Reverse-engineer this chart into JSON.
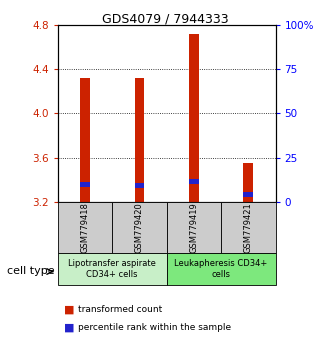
{
  "title": "GDS4079 / 7944333",
  "samples": [
    "GSM779418",
    "GSM779420",
    "GSM779419",
    "GSM779421"
  ],
  "red_values": [
    4.32,
    4.32,
    4.72,
    3.55
  ],
  "blue_values": [
    3.36,
    3.35,
    3.38,
    3.27
  ],
  "bar_bottom": 3.2,
  "ylim_left": [
    3.2,
    4.8
  ],
  "ylim_right": [
    0,
    100
  ],
  "yticks_left": [
    3.2,
    3.6,
    4.0,
    4.4,
    4.8
  ],
  "yticks_right": [
    0,
    25,
    50,
    75,
    100
  ],
  "ytick_labels_right": [
    "0",
    "25",
    "50",
    "75",
    "100%"
  ],
  "grid_lines": [
    3.6,
    4.0,
    4.4
  ],
  "groups": [
    {
      "label": "Lipotransfer aspirate\nCD34+ cells",
      "samples": [
        0,
        1
      ],
      "color": "#c8efc8"
    },
    {
      "label": "Leukapheresis CD34+\ncells",
      "samples": [
        2,
        3
      ],
      "color": "#7de87d"
    }
  ],
  "cell_type_label": "cell type",
  "legend_red": "transformed count",
  "legend_blue": "percentile rank within the sample",
  "red_color": "#cc2200",
  "blue_color": "#2222cc",
  "bar_width": 0.18,
  "sample_box_color": "#cccccc",
  "blue_bar_height": 0.045,
  "title_fontsize": 9,
  "tick_fontsize": 7.5,
  "sample_fontsize": 6,
  "group_fontsize": 6,
  "legend_fontsize": 6.5
}
